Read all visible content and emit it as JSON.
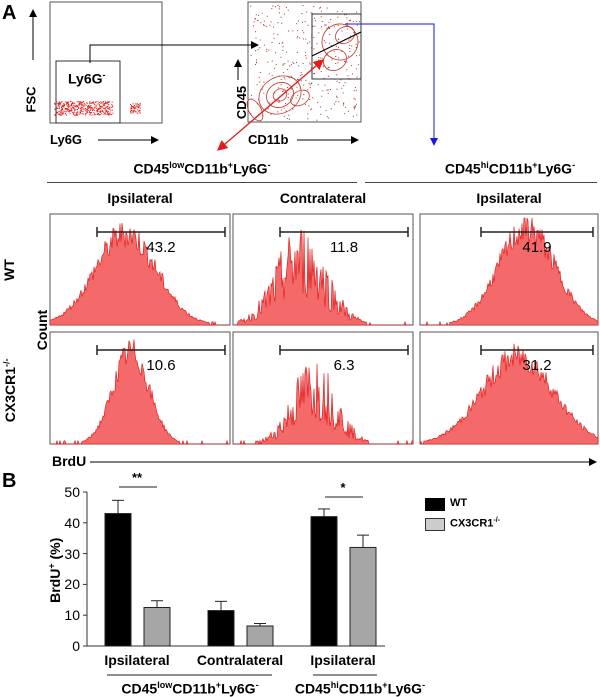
{
  "panel_a": {
    "label": "A",
    "gating": {
      "plot1": {
        "y_axis": "FSC",
        "x_axis": "Ly6G",
        "gate_label": "Ly6G",
        "gate_sup": "-"
      },
      "plot2": {
        "y_axis": "CD45",
        "x_axis": "CD11b"
      }
    },
    "headers": {
      "low": {
        "pre": "CD45",
        "sup1": "low",
        "mid": "CD11b",
        "sup2": "+",
        "post": "Ly6G",
        "sup3": "-"
      },
      "hi": {
        "pre": "CD45",
        "sup1": "hi",
        "mid": "CD11b",
        "sup2": "+",
        "post": "Ly6G",
        "sup3": "-"
      }
    },
    "columns": [
      "Ipsilateral",
      "Contralateral",
      "Ipsilateral"
    ],
    "rows": [
      {
        "label": "WT",
        "sup": ""
      },
      {
        "label": "CX3CR1",
        "sup": "-/-"
      }
    ],
    "y_axis": "Count",
    "x_axis": "BrdU",
    "gate_values": [
      [
        "43.2",
        "11.8",
        "41.9"
      ],
      [
        "10.6",
        "6.3",
        "31.2"
      ]
    ],
    "colors": {
      "histogram_fill": "#f46a6a",
      "histogram_line": "#e01010",
      "gate_arrow_black": "#000000",
      "gate_arrow_blue": "#1a1adf",
      "gate_arrow_red": "#e51a1a"
    }
  },
  "panel_b": {
    "label": "B",
    "chart_data": {
      "type": "bar",
      "categories": [
        "Ipsilateral",
        "Contralateral",
        "Ipsilateral"
      ],
      "groups": [
        {
          "pre": "CD45",
          "sup1": "low",
          "mid": "CD11b",
          "sup2": "+",
          "post": "Ly6G",
          "sup3": "-",
          "categories": [
            0,
            1
          ]
        },
        {
          "pre": "CD45",
          "sup1": "hi",
          "mid": "CD11b",
          "sup2": "+",
          "post": "Ly6G",
          "sup3": "-",
          "categories": [
            2
          ]
        }
      ],
      "series": [
        {
          "name": "WT",
          "sup": "",
          "color": "#000000",
          "values": [
            43,
            11.5,
            42
          ],
          "error_upper": [
            47.3,
            14.5,
            44.5
          ]
        },
        {
          "name": "CX3CR1",
          "sup": "-/-",
          "color": "#a6a6a6",
          "values": [
            12.5,
            6.5,
            32
          ],
          "error_upper": [
            14.7,
            7.3,
            36
          ]
        }
      ],
      "ylabel": "BrdU",
      "ylabel_sup": "+",
      "ylabel_unit": "(%)",
      "ylim": [
        0,
        50
      ],
      "yticks": [
        "0",
        "10",
        "20",
        "30",
        "40",
        "50"
      ],
      "significance": [
        {
          "category": 0,
          "label": "**"
        },
        {
          "category": 2,
          "label": "*"
        }
      ],
      "grid": false,
      "legend": "top-right"
    }
  }
}
